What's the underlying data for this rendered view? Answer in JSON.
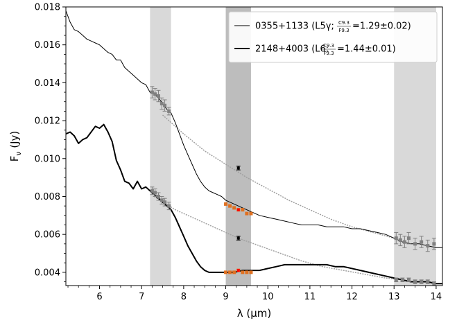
{
  "chart_data": {
    "type": "line",
    "title": "",
    "xlabel": "λ (μm)",
    "ylabel": "F_ν (Jy)",
    "xlim": [
      5.2,
      14.15
    ],
    "ylim": [
      0.0033,
      0.018
    ],
    "x_ticks": [
      6,
      7,
      8,
      9,
      10,
      11,
      12,
      13,
      14
    ],
    "y_ticks": [
      0.004,
      0.006,
      0.008,
      0.01,
      0.012,
      0.014,
      0.016,
      0.018
    ],
    "y_tick_labels": [
      "0.004",
      "0.006",
      "0.008",
      "0.010",
      "0.012",
      "0.014",
      "0.016",
      "0.018"
    ],
    "shaded_bands": [
      {
        "x0": 7.2,
        "x1": 7.7,
        "color": "#d9d9d9"
      },
      {
        "x0": 9.0,
        "x1": 9.6,
        "color": "#bdbdbd"
      },
      {
        "x0": 13.0,
        "x1": 14.0,
        "color": "#d9d9d9"
      }
    ],
    "legend_position": "top-right",
    "series": [
      {
        "name": "0355+1133 (L5γ;",
        "ratio_label": "=1.29±0.02)",
        "frac_num": "C9.3",
        "frac_den": "F9.3",
        "line_width": 1,
        "color": "#000000",
        "x": [
          5.2,
          5.3,
          5.4,
          5.5,
          5.6,
          5.7,
          5.8,
          5.9,
          6.0,
          6.1,
          6.2,
          6.3,
          6.4,
          6.5,
          6.6,
          6.7,
          6.8,
          6.9,
          7.0,
          7.1,
          7.2,
          7.3,
          7.4,
          7.5,
          7.6,
          7.7,
          7.8,
          7.9,
          8.0,
          8.1,
          8.2,
          8.3,
          8.4,
          8.5,
          8.6,
          8.7,
          8.8,
          8.9,
          9.0,
          9.2,
          9.4,
          9.6,
          9.8,
          10.0,
          10.2,
          10.4,
          10.6,
          10.8,
          11.0,
          11.2,
          11.4,
          11.6,
          11.8,
          12.0,
          12.2,
          12.4,
          12.6,
          12.8,
          13.0,
          13.2,
          13.4,
          13.6,
          13.8,
          14.0,
          14.15
        ],
        "y": [
          0.0178,
          0.0172,
          0.0168,
          0.0167,
          0.0165,
          0.0163,
          0.0162,
          0.0161,
          0.016,
          0.0158,
          0.0156,
          0.0155,
          0.0152,
          0.0152,
          0.0148,
          0.0146,
          0.0144,
          0.0142,
          0.014,
          0.0139,
          0.0135,
          0.0134,
          0.0132,
          0.0129,
          0.0126,
          0.0124,
          0.0119,
          0.0113,
          0.0107,
          0.0102,
          0.0097,
          0.0092,
          0.0088,
          0.0085,
          0.0083,
          0.0082,
          0.0081,
          0.008,
          0.0078,
          0.0076,
          0.0074,
          0.0072,
          0.007,
          0.0069,
          0.0068,
          0.0067,
          0.0066,
          0.0065,
          0.0065,
          0.0065,
          0.0064,
          0.0064,
          0.0064,
          0.0063,
          0.0063,
          0.0062,
          0.0061,
          0.006,
          0.0058,
          0.0056,
          0.0055,
          0.0055,
          0.0054,
          0.0053,
          0.0053
        ]
      },
      {
        "name": "2148+4003 (L6;",
        "ratio_label": "=1.44±0.01)",
        "frac_num": "C9.3",
        "frac_den": "F9.3",
        "line_width": 2,
        "color": "#000000",
        "x": [
          5.2,
          5.3,
          5.4,
          5.5,
          5.6,
          5.7,
          5.8,
          5.9,
          6.0,
          6.1,
          6.2,
          6.3,
          6.4,
          6.5,
          6.6,
          6.7,
          6.8,
          6.9,
          7.0,
          7.1,
          7.2,
          7.3,
          7.4,
          7.5,
          7.6,
          7.7,
          7.8,
          7.9,
          8.0,
          8.1,
          8.2,
          8.3,
          8.4,
          8.5,
          8.6,
          8.7,
          8.8,
          8.9,
          9.0,
          9.2,
          9.4,
          9.6,
          9.8,
          10.0,
          10.2,
          10.4,
          10.6,
          10.8,
          11.0,
          11.2,
          11.4,
          11.6,
          11.8,
          12.0,
          12.2,
          12.4,
          12.6,
          12.8,
          13.0,
          13.2,
          13.4,
          13.6,
          13.8,
          14.0,
          14.15
        ],
        "y": [
          0.0113,
          0.0114,
          0.0112,
          0.0108,
          0.011,
          0.0111,
          0.0114,
          0.0117,
          0.0116,
          0.0118,
          0.0114,
          0.0109,
          0.0099,
          0.0094,
          0.0088,
          0.0087,
          0.0084,
          0.0088,
          0.0084,
          0.0085,
          0.0083,
          0.0081,
          0.0079,
          0.0077,
          0.0075,
          0.0073,
          0.0069,
          0.0064,
          0.0059,
          0.0054,
          0.005,
          0.0046,
          0.0043,
          0.0041,
          0.004,
          0.004,
          0.004,
          0.004,
          0.004,
          0.004,
          0.0041,
          0.0041,
          0.0041,
          0.0042,
          0.0043,
          0.0044,
          0.0044,
          0.0044,
          0.0044,
          0.0044,
          0.0044,
          0.0043,
          0.0043,
          0.0042,
          0.0041,
          0.004,
          0.0039,
          0.0038,
          0.0037,
          0.0036,
          0.0035,
          0.0035,
          0.0035,
          0.0034,
          0.0034
        ]
      }
    ],
    "continuum_fits": [
      {
        "series": "0355+1133",
        "x": [
          7.5,
          8.0,
          8.5,
          9.0,
          9.5,
          10.0,
          10.5,
          11.0,
          11.5,
          12.0,
          12.5,
          13.0
        ],
        "y": [
          0.0123,
          0.0113,
          0.0104,
          0.0097,
          0.009,
          0.0084,
          0.0078,
          0.0073,
          0.0068,
          0.0064,
          0.0061,
          0.0058
        ]
      },
      {
        "series": "2148+4003",
        "x": [
          7.3,
          7.8,
          8.3,
          8.8,
          9.3,
          9.8,
          10.3,
          10.8,
          11.3,
          11.8,
          12.3,
          12.8,
          13.2
        ],
        "y": [
          0.008,
          0.0073,
          0.0068,
          0.0063,
          0.0058,
          0.0054,
          0.005,
          0.0046,
          0.0043,
          0.0041,
          0.0039,
          0.0037,
          0.0036
        ]
      }
    ],
    "gray_points": [
      {
        "x": 7.25,
        "y": 0.0135,
        "err": 0.0003
      },
      {
        "x": 7.32,
        "y": 0.0134,
        "err": 0.0003
      },
      {
        "x": 7.4,
        "y": 0.0133,
        "err": 0.0003
      },
      {
        "x": 7.48,
        "y": 0.0129,
        "err": 0.0003
      },
      {
        "x": 7.55,
        "y": 0.0128,
        "err": 0.0003
      },
      {
        "x": 7.65,
        "y": 0.0125,
        "err": 0.0002
      },
      {
        "x": 7.25,
        "y": 0.0083,
        "err": 0.0002
      },
      {
        "x": 7.32,
        "y": 0.0082,
        "err": 0.0002
      },
      {
        "x": 7.4,
        "y": 0.008,
        "err": 0.0002
      },
      {
        "x": 7.48,
        "y": 0.0078,
        "err": 0.0002
      },
      {
        "x": 7.55,
        "y": 0.0077,
        "err": 0.0002
      },
      {
        "x": 7.65,
        "y": 0.0075,
        "err": 0.0002
      },
      {
        "x": 13.05,
        "y": 0.0058,
        "err": 0.0003
      },
      {
        "x": 13.15,
        "y": 0.0057,
        "err": 0.0003
      },
      {
        "x": 13.25,
        "y": 0.0056,
        "err": 0.0003
      },
      {
        "x": 13.35,
        "y": 0.0058,
        "err": 0.0003
      },
      {
        "x": 13.5,
        "y": 0.0055,
        "err": 0.0003
      },
      {
        "x": 13.65,
        "y": 0.0056,
        "err": 0.0003
      },
      {
        "x": 13.8,
        "y": 0.0054,
        "err": 0.0003
      },
      {
        "x": 13.95,
        "y": 0.0055,
        "err": 0.0003
      },
      {
        "x": 13.05,
        "y": 0.0036,
        "err": 0.0001
      },
      {
        "x": 13.2,
        "y": 0.0036,
        "err": 0.0001
      },
      {
        "x": 13.35,
        "y": 0.0036,
        "err": 0.0001
      },
      {
        "x": 13.5,
        "y": 0.0035,
        "err": 0.0001
      },
      {
        "x": 13.65,
        "y": 0.0035,
        "err": 0.0001
      },
      {
        "x": 13.8,
        "y": 0.0035,
        "err": 0.0001
      },
      {
        "x": 13.95,
        "y": 0.0034,
        "err": 0.0001
      }
    ],
    "orange_points": [
      {
        "x": 9.0,
        "y": 0.0076
      },
      {
        "x": 9.1,
        "y": 0.0075
      },
      {
        "x": 9.2,
        "y": 0.0074
      },
      {
        "x": 9.3,
        "y": 0.0073
      },
      {
        "x": 9.4,
        "y": 0.0073
      },
      {
        "x": 9.5,
        "y": 0.0071
      },
      {
        "x": 9.6,
        "y": 0.0071
      },
      {
        "x": 9.0,
        "y": 0.004
      },
      {
        "x": 9.1,
        "y": 0.004
      },
      {
        "x": 9.2,
        "y": 0.004
      },
      {
        "x": 9.3,
        "y": 0.0041
      },
      {
        "x": 9.4,
        "y": 0.004
      },
      {
        "x": 9.5,
        "y": 0.004
      },
      {
        "x": 9.6,
        "y": 0.004
      }
    ],
    "red_points": [
      {
        "x": 9.3,
        "y": 0.0073
      },
      {
        "x": 9.3,
        "y": 0.0041
      }
    ],
    "black_points": [
      {
        "x": 9.3,
        "y": 0.0095,
        "err": 0.0001
      },
      {
        "x": 9.3,
        "y": 0.0058,
        "err": 0.0001
      }
    ],
    "colors": {
      "gray_marker": "#808080",
      "orange_marker": "#e07020",
      "red_marker": "#ff0000",
      "fit_line": "#a0a0a0"
    }
  }
}
